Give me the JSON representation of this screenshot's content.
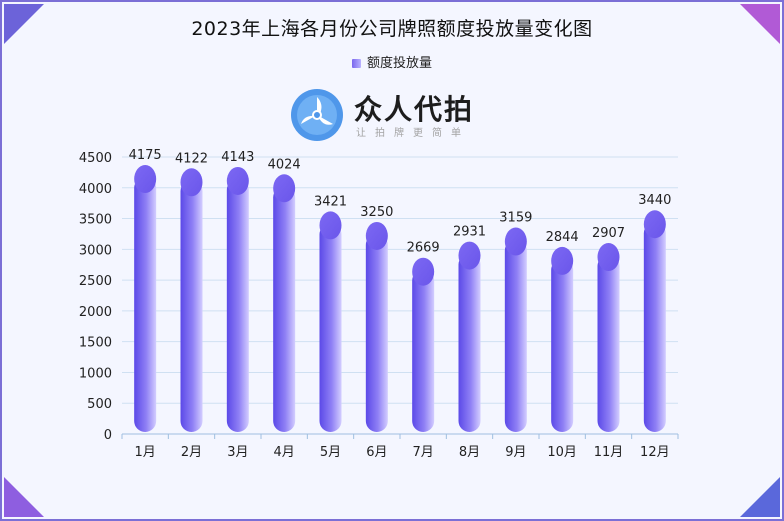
{
  "page": {
    "title": "2023年上海各月份公司牌照额度投放量变化图",
    "logo": {
      "name": "众人代拍",
      "subtitle": "让拍牌更简单"
    }
  },
  "colors": {
    "bar_dark": "#6a58ec",
    "bar_light": "#c4bcff",
    "grid": "#cfe0f2",
    "axis_text": "#222222"
  },
  "chart_data": {
    "type": "bar",
    "title": "2023年上海各月份公司牌照额度投放量变化图",
    "categories": [
      "1月",
      "2月",
      "3月",
      "4月",
      "5月",
      "6月",
      "7月",
      "8月",
      "9月",
      "10月",
      "11月",
      "12月"
    ],
    "series": [
      {
        "name": "额度投放量",
        "values": [
          4175,
          4122,
          4143,
          4024,
          3421,
          3250,
          2669,
          2931,
          3159,
          2844,
          2907,
          3440
        ]
      }
    ],
    "ylim": [
      0,
      4500
    ],
    "yticks": [
      0,
      500,
      1000,
      1500,
      2000,
      2500,
      3000,
      3500,
      4000,
      4500
    ],
    "grid": true,
    "legend": "top-center",
    "data_labels": true
  }
}
